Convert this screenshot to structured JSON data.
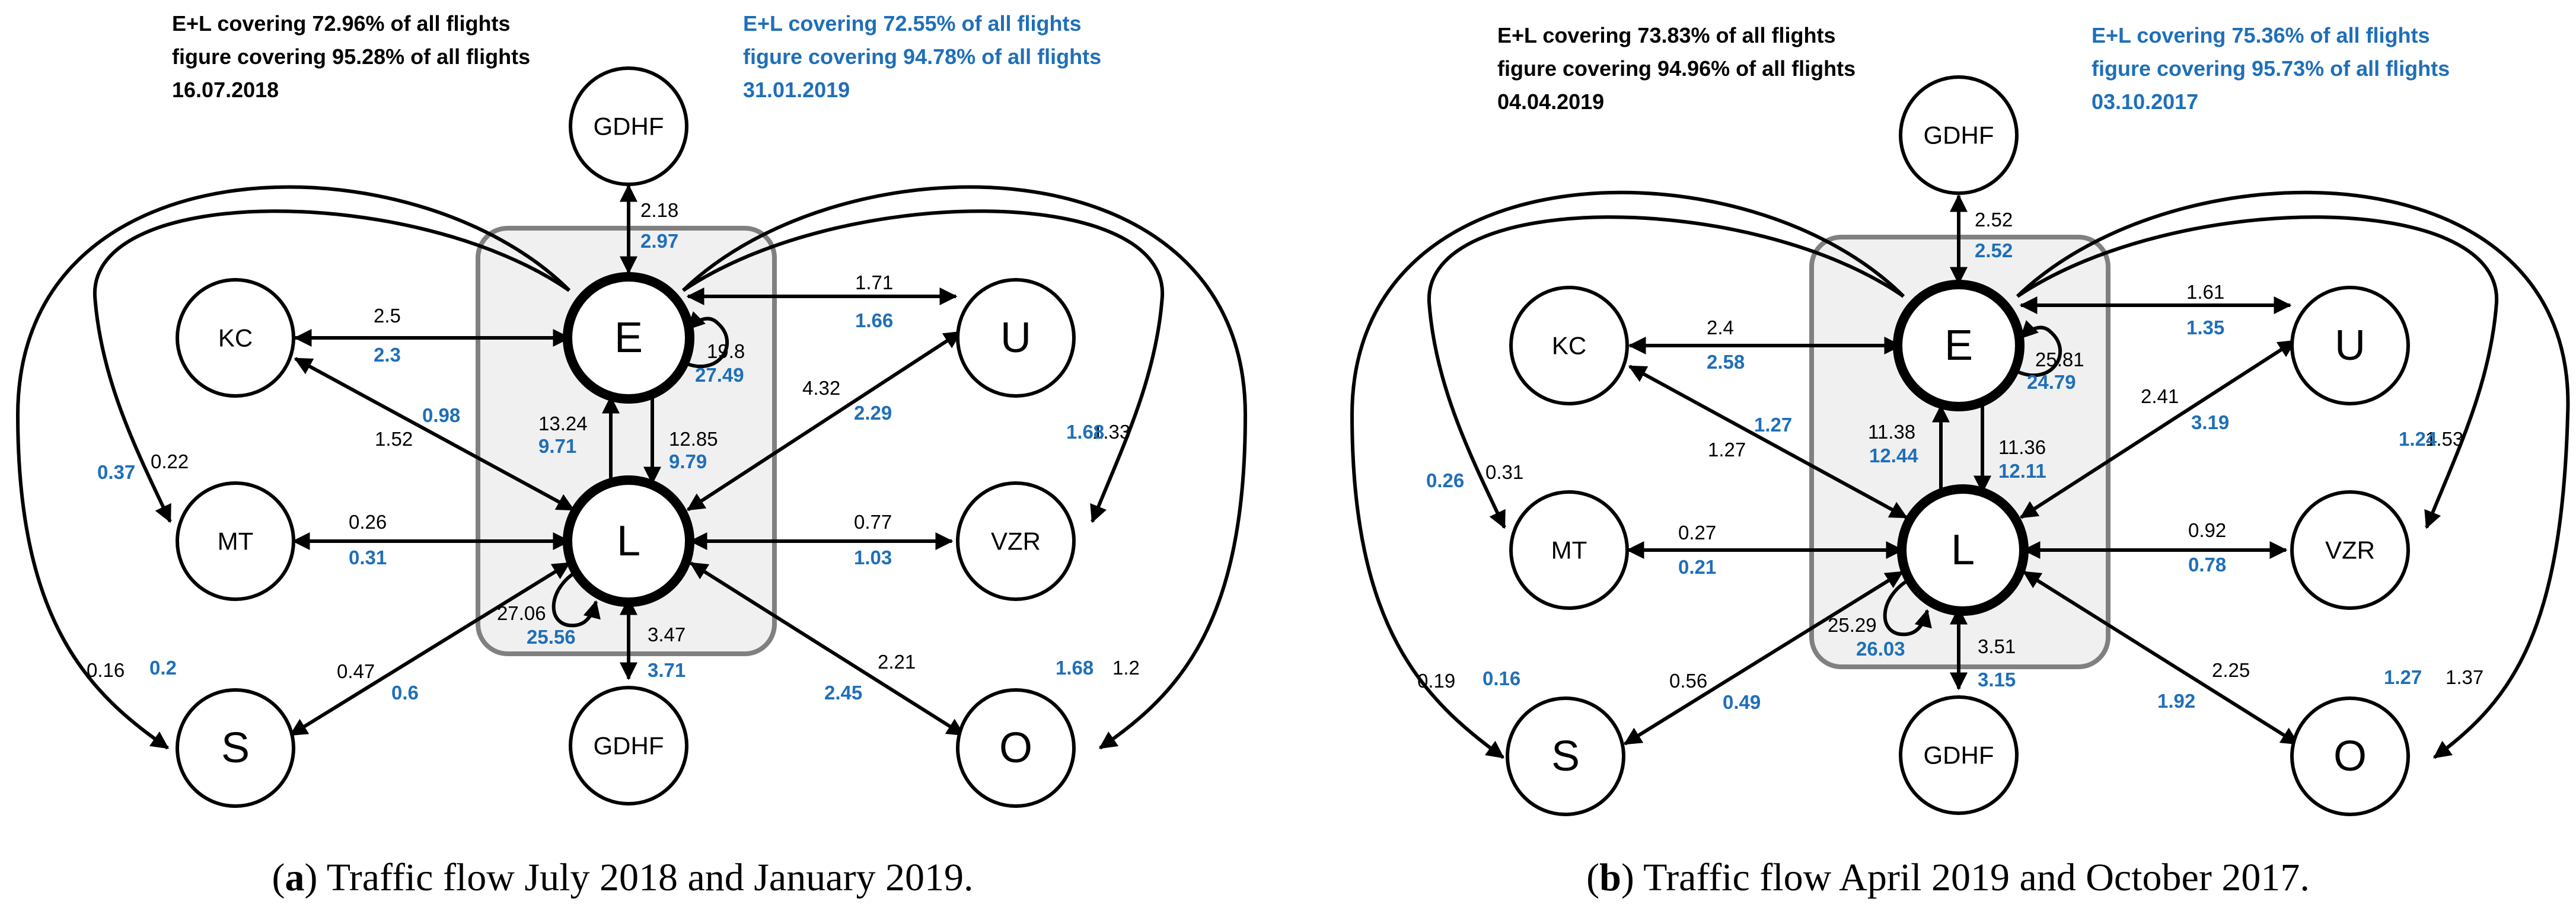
{
  "colors": {
    "black": "#000000",
    "blue": "#1f6fb8",
    "box_fill": "#f0f0f0",
    "box_stroke": "#808080"
  },
  "panels": [
    {
      "header_black": [
        "E+L covering 72.96% of all flights",
        "figure covering 95.28% of all flights",
        "16.07.2018"
      ],
      "header_blue": [
        "E+L covering 72.55% of all flights",
        "figure covering 94.78% of all flights",
        "31.01.2019"
      ],
      "nodes": {
        "gdhf_top": "GDHF",
        "kc": "KC",
        "e": "E",
        "u": "U",
        "mt": "MT",
        "l": "L",
        "vzr": "VZR",
        "s": "S",
        "gdhf_bottom": "GDHF",
        "o": "O"
      },
      "flows": {
        "gdhf_e": [
          "2.18",
          "2.97"
        ],
        "kc_e": [
          "2.5",
          "2.3"
        ],
        "e_u": [
          "1.71",
          "1.66"
        ],
        "e_self": [
          "19.8",
          "27.49"
        ],
        "kc_l": [
          "1.52",
          "0.98"
        ],
        "l_e": [
          "13.24",
          "9.71"
        ],
        "e_l": [
          "12.85",
          "9.79"
        ],
        "u_l": [
          "4.32",
          "2.29"
        ],
        "e_mt": [
          "0.22",
          "0.37"
        ],
        "e_vzr": [
          "1.33",
          "1.68"
        ],
        "mt_l": [
          "0.26",
          "0.31"
        ],
        "l_vzr": [
          "0.77",
          "1.03"
        ],
        "l_self": [
          "27.06",
          "25.56"
        ],
        "l_gdhf": [
          "3.47",
          "3.71"
        ],
        "e_s": [
          "0.16",
          "0.2"
        ],
        "s_l": [
          "0.47",
          "0.6"
        ],
        "l_o": [
          "2.21",
          "2.45"
        ],
        "e_o": [
          "1.2",
          "1.68"
        ]
      },
      "caption": {
        "letter": "a",
        "text": " Traffic flow July 2018 and January 2019."
      }
    },
    {
      "header_black": [
        "E+L covering 73.83% of all flights",
        "figure covering 94.96% of all flights",
        "04.04.2019"
      ],
      "header_blue": [
        "E+L covering 75.36% of all flights",
        "figure covering 95.73% of all flights",
        "03.10.2017"
      ],
      "nodes": {
        "gdhf_top": "GDHF",
        "kc": "KC",
        "e": "E",
        "u": "U",
        "mt": "MT",
        "l": "L",
        "vzr": "VZR",
        "s": "S",
        "gdhf_bottom": "GDHF",
        "o": "O"
      },
      "flows": {
        "gdhf_e": [
          "2.52",
          "2.52"
        ],
        "kc_e": [
          "2.4",
          "2.58"
        ],
        "e_u": [
          "1.61",
          "1.35"
        ],
        "e_self": [
          "25.81",
          "24.79"
        ],
        "kc_l": [
          "1.27",
          "1.27"
        ],
        "l_e": [
          "11.38",
          "12.44"
        ],
        "e_l": [
          "11.36",
          "12.11"
        ],
        "u_l": [
          "2.41",
          "3.19"
        ],
        "e_mt": [
          "0.31",
          "0.26"
        ],
        "e_vzr": [
          "1.53",
          "1.24"
        ],
        "mt_l": [
          "0.27",
          "0.21"
        ],
        "l_vzr": [
          "0.92",
          "0.78"
        ],
        "l_self": [
          "25.29",
          "26.03"
        ],
        "l_gdhf": [
          "3.51",
          "3.15"
        ],
        "e_s": [
          "0.19",
          "0.16"
        ],
        "s_l": [
          "0.56",
          "0.49"
        ],
        "l_o": [
          "2.25",
          "1.92"
        ],
        "e_o": [
          "1.37",
          "1.27"
        ]
      },
      "caption": {
        "letter": "b",
        "text": " Traffic flow April 2019 and October 2017."
      }
    }
  ]
}
